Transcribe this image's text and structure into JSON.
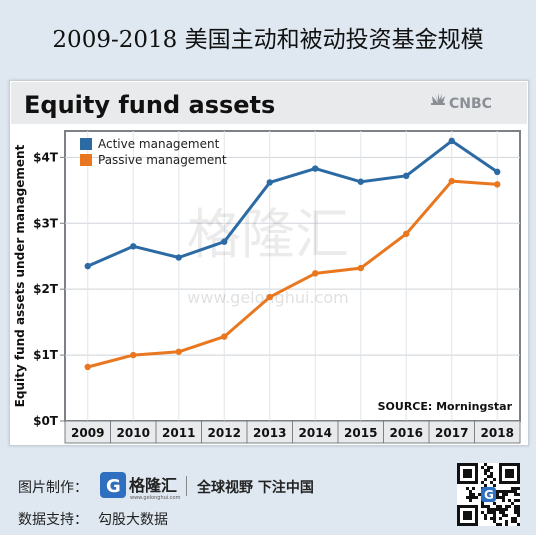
{
  "page_title": "2009-2018 美国主动和被动投资基金规模",
  "colors": {
    "active": "#2b6aa3",
    "passive": "#e8771f",
    "frame": "#7b8187",
    "header_bg": "#e9eaec"
  },
  "chart_data": {
    "type": "line",
    "title": "Equity fund assets",
    "brand": "CNBC",
    "ylabel": "Equity fund assets under management",
    "source": "SOURCE: Morningstar",
    "x": [
      "2009",
      "2010",
      "2011",
      "2012",
      "2013",
      "2014",
      "2015",
      "2016",
      "2017",
      "2018"
    ],
    "yticks": [
      {
        "value": 0,
        "label": "$0T"
      },
      {
        "value": 1,
        "label": "$1T"
      },
      {
        "value": 2,
        "label": "$2T"
      },
      {
        "value": 3,
        "label": "$3T"
      },
      {
        "value": 4,
        "label": "$4T"
      }
    ],
    "ylim": [
      0,
      4.4
    ],
    "grid": true,
    "legend_position": "top-left",
    "series": [
      {
        "name": "Active management",
        "color_key": "active",
        "values": [
          2.35,
          2.65,
          2.48,
          2.72,
          3.62,
          3.83,
          3.63,
          3.72,
          4.25,
          3.78
        ]
      },
      {
        "name": "Passive management",
        "color_key": "passive",
        "values": [
          0.82,
          1.0,
          1.05,
          1.28,
          1.88,
          2.24,
          2.32,
          2.84,
          3.64,
          3.59
        ]
      }
    ]
  },
  "watermark": {
    "text": "格隆汇",
    "url": "www.gelonghui.com"
  },
  "footer": {
    "credit_label": "图片制作：",
    "logo_text": "格隆汇",
    "logo_sub": "www.gelonghui.com",
    "slogan": "全球视野 下注中国",
    "data_label": "数据支持：",
    "data_source": "勾股大数据"
  }
}
